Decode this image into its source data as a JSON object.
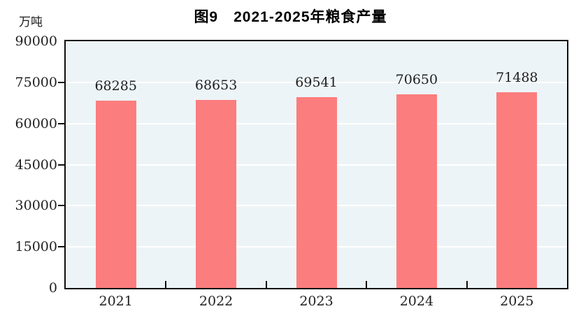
{
  "chart_data": {
    "type": "bar",
    "title": "图9　2021-2025年粮食产量",
    "unit": "万吨",
    "categories": [
      "2021",
      "2022",
      "2023",
      "2024",
      "2025"
    ],
    "values": [
      68285,
      68653,
      69541,
      70650,
      71488
    ],
    "xlabel": "",
    "ylabel": "万吨",
    "ylim": [
      0,
      90000
    ],
    "yticks": [
      0,
      15000,
      30000,
      45000,
      60000,
      75000,
      90000
    ],
    "grid": "horizontal white gridlines at each y tick",
    "legend": "none",
    "colors": {
      "bar": "#FC7D7D",
      "plot_background": "#EDF4F7",
      "gridline": "#FFFFFF",
      "axis": "#0D0D0D",
      "text": "#1F1F1F"
    }
  }
}
